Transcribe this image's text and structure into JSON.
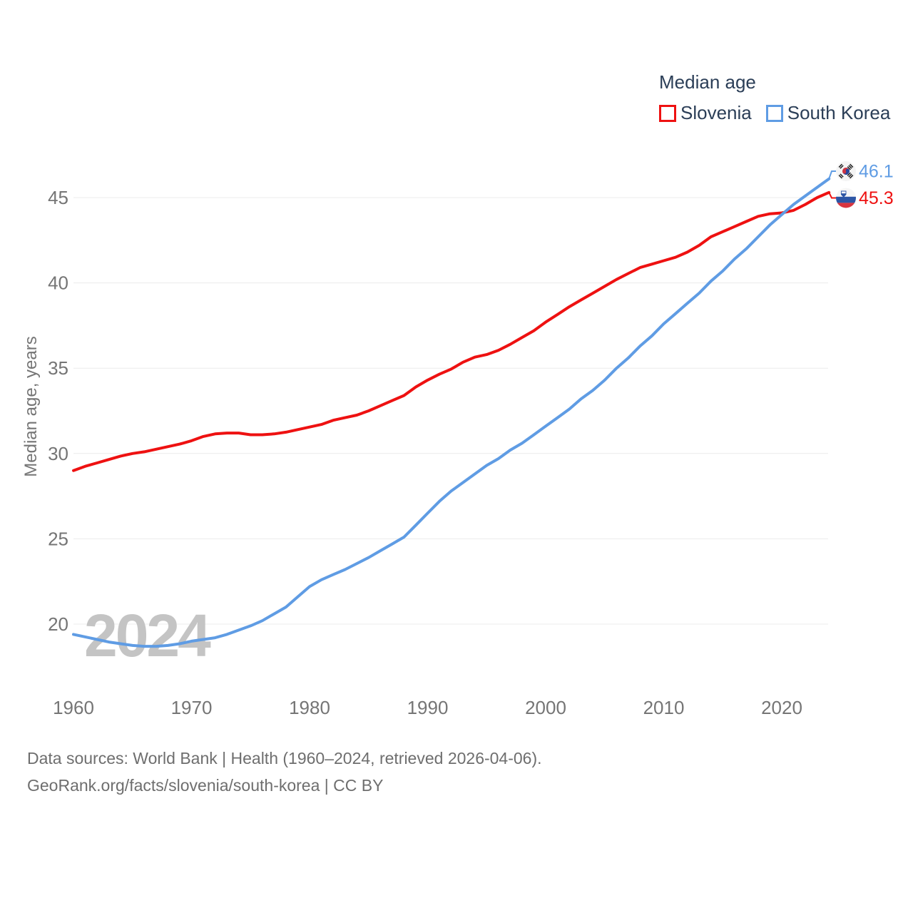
{
  "legend": {
    "title": "Median age",
    "items": [
      {
        "label": "Slovenia",
        "color": "#ee1111"
      },
      {
        "label": "South Korea",
        "color": "#5f9ce4"
      }
    ]
  },
  "watermark": "2024",
  "footer": {
    "line1": "Data sources: World Bank | Health (1960–2024, retrieved 2026-04-06).",
    "line2": "GeoRank.org/facts/slovenia/south-korea | CC BY"
  },
  "colors": {
    "slovenia": "#ee1111",
    "south_korea": "#5f9ce4",
    "grid": "#ececec",
    "axis_text": "#757575",
    "legend_text": "#2b3e57",
    "watermark": "#c4c4c4"
  },
  "chart_data": {
    "type": "line",
    "title": "Median age",
    "xlabel": "",
    "ylabel": "Median age, years",
    "x_start": 1960,
    "x_end": 2024,
    "xticks": [
      1960,
      1970,
      1980,
      1990,
      2000,
      2010,
      2020
    ],
    "yticks": [
      45,
      40,
      35,
      30,
      25,
      20
    ],
    "ylim": [
      17.5,
      47.5
    ],
    "grid": "horizontal",
    "legend_position": "top-right",
    "series": [
      {
        "name": "Slovenia",
        "color": "#ee1111",
        "end_label": "45.3",
        "flag": "slovenia",
        "values": [
          29.0,
          29.25,
          29.45,
          29.65,
          29.85,
          30.0,
          30.1,
          30.25,
          30.4,
          30.55,
          30.75,
          31.0,
          31.15,
          31.2,
          31.2,
          31.1,
          31.1,
          31.15,
          31.25,
          31.4,
          31.55,
          31.7,
          31.95,
          32.1,
          32.25,
          32.5,
          32.8,
          33.1,
          33.4,
          33.9,
          34.3,
          34.65,
          34.95,
          35.35,
          35.65,
          35.8,
          36.05,
          36.4,
          36.8,
          37.2,
          37.7,
          38.15,
          38.6,
          39.0,
          39.4,
          39.8,
          40.2,
          40.55,
          40.9,
          41.1,
          41.3,
          41.5,
          41.8,
          42.2,
          42.7,
          43.0,
          43.3,
          43.6,
          43.9,
          44.05,
          44.1,
          44.25,
          44.6,
          45.0,
          45.3
        ]
      },
      {
        "name": "South Korea",
        "color": "#5f9ce4",
        "end_label": "46.1",
        "flag": "south-korea",
        "values": [
          19.4,
          19.25,
          19.1,
          18.95,
          18.85,
          18.75,
          18.7,
          18.7,
          18.75,
          18.85,
          19.0,
          19.1,
          19.2,
          19.4,
          19.65,
          19.9,
          20.2,
          20.6,
          21.0,
          21.6,
          22.2,
          22.6,
          22.9,
          23.2,
          23.55,
          23.9,
          24.3,
          24.7,
          25.1,
          25.8,
          26.5,
          27.2,
          27.8,
          28.3,
          28.8,
          29.3,
          29.7,
          30.2,
          30.6,
          31.1,
          31.6,
          32.1,
          32.6,
          33.2,
          33.7,
          34.3,
          35.0,
          35.6,
          36.3,
          36.9,
          37.6,
          38.2,
          38.8,
          39.4,
          40.1,
          40.7,
          41.4,
          42.0,
          42.7,
          43.4,
          44.0,
          44.6,
          45.1,
          45.6,
          46.1
        ]
      }
    ]
  }
}
